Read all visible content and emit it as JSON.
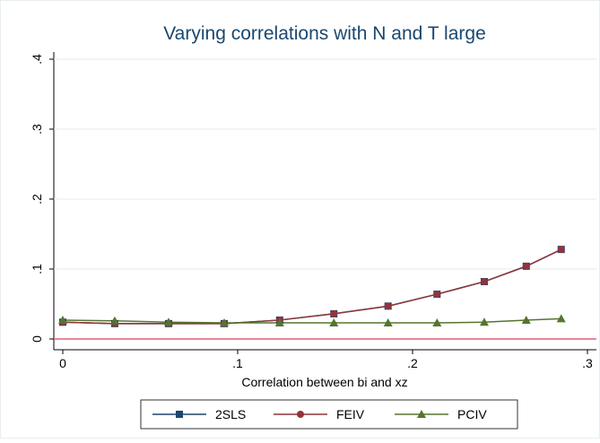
{
  "chart_data": {
    "type": "line",
    "title": "Varying correlations with N and T large",
    "x_label": "Correlation between bi and xz",
    "x": [
      0,
      0.0297,
      0.0605,
      0.0923,
      0.124,
      0.155,
      0.186,
      0.214,
      0.241,
      0.265,
      0.285
    ],
    "series": [
      {
        "name": "2SLS",
        "color": "#1a476f",
        "marker": "square",
        "values": [
          0.024,
          0.022,
          0.022,
          0.022,
          0.027,
          0.036,
          0.047,
          0.064,
          0.082,
          0.104,
          0.128
        ]
      },
      {
        "name": "FEIV",
        "color": "#90353b",
        "marker": "circle",
        "values": [
          0.024,
          0.022,
          0.022,
          0.022,
          0.027,
          0.036,
          0.047,
          0.064,
          0.082,
          0.104,
          0.128
        ]
      },
      {
        "name": "PCIV",
        "color": "#55752f",
        "marker": "triangle",
        "values": [
          0.027,
          0.026,
          0.024,
          0.023,
          0.023,
          0.023,
          0.023,
          0.023,
          0.024,
          0.027,
          0.029
        ]
      }
    ],
    "xlim": [
      0,
      0.3
    ],
    "xticks": [
      0,
      {
        "value": 0.1,
        "label": ".1"
      },
      {
        "value": 0.2,
        "label": ".2"
      },
      {
        "value": 0.3,
        "label": ".3"
      }
    ],
    "ylim": [
      0,
      0.4
    ],
    "yticks": [
      0,
      {
        "value": 0.1,
        "label": ".1"
      },
      {
        "value": 0.2,
        "label": ".2"
      },
      {
        "value": 0.3,
        "label": ".3"
      },
      {
        "value": 0.4,
        "label": ".4"
      }
    ],
    "grid": true,
    "reference_line": {
      "value": 0,
      "color": "#e0607a"
    },
    "legend": "bottom"
  }
}
